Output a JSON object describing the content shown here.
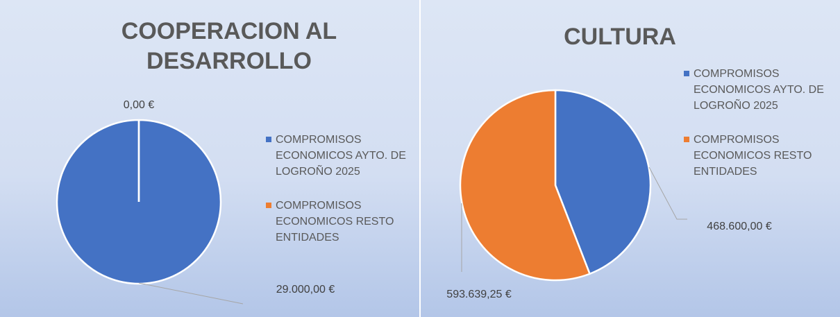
{
  "chart_data": [
    {
      "type": "pie",
      "title": "COOPERACION AL DESARROLLO",
      "categories": [
        "COMPROMISOS ECONOMICOS AYTO. DE LOGROÑO 2025",
        "COMPROMISOS ECONOMICOS RESTO ENTIDADES"
      ],
      "values": [
        29000,
        0
      ],
      "value_labels": [
        "29.000,00 €",
        "0,00 €"
      ],
      "colors": [
        "#4472c4",
        "#ed7d31"
      ],
      "legend": "right"
    },
    {
      "type": "pie",
      "title": "CULTURA",
      "categories": [
        "COMPROMISOS ECONOMICOS AYTO. DE LOGROÑO 2025",
        "COMPROMISOS ECONOMICOS RESTO ENTIDADES"
      ],
      "values": [
        468600,
        593639.25
      ],
      "value_labels": [
        "468.600,00 €",
        "593.639,25 €"
      ],
      "colors": [
        "#4472c4",
        "#ed7d31"
      ],
      "legend": "right"
    }
  ]
}
